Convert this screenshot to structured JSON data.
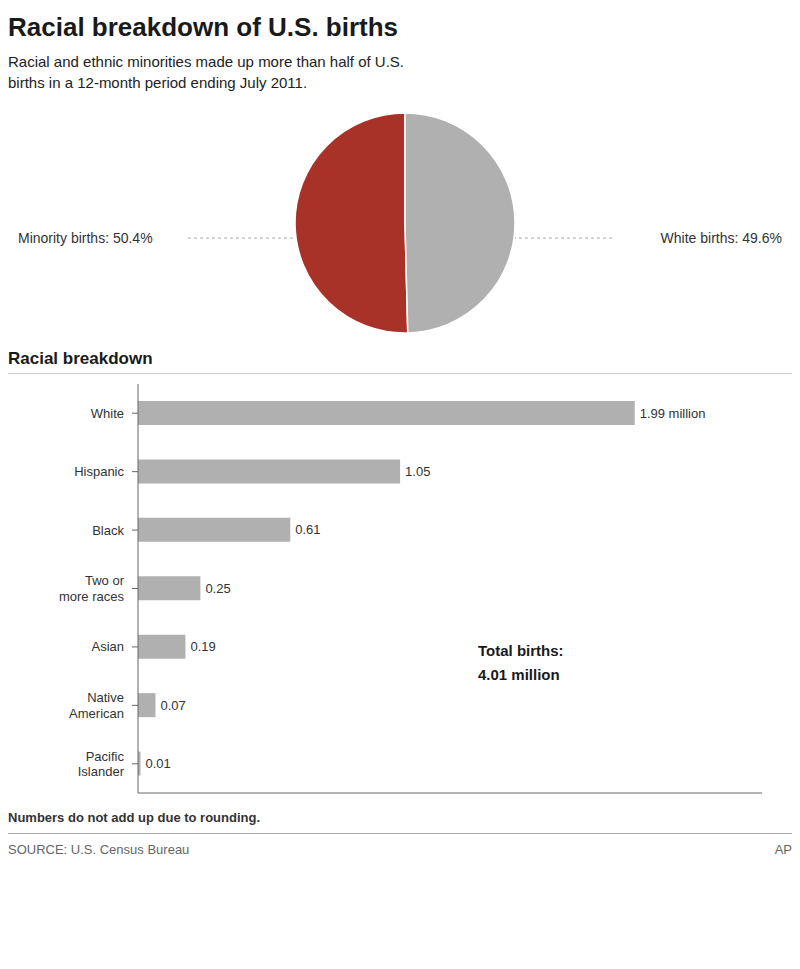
{
  "chart_data": [
    {
      "type": "pie",
      "title": "Racial breakdown of U.S. births",
      "subtitle": "Racial and ethnic minorities made up more than half of U.S.\nbirths in a 12-month period ending July 2011.",
      "values": [
        50.4,
        49.6
      ],
      "colors": [
        "#a83228",
        "#b0b0b0"
      ],
      "value_labels": [
        "Minority births: 50.4%",
        "White births: 49.6%"
      ],
      "data_labels": true
    },
    {
      "type": "bar",
      "orientation": "horizontal",
      "title": "Racial breakdown",
      "categories": [
        "White",
        "Hispanic",
        "Black",
        "Two or\nmore races",
        "Asian",
        "Native\nAmerican",
        "Pacific\nIslander"
      ],
      "values": [
        1.99,
        1.05,
        0.61,
        0.25,
        0.19,
        0.07,
        0.01
      ],
      "value_labels": [
        "1.99 million",
        "1.05",
        "0.61",
        "0.25",
        "0.19",
        "0.07",
        "0.01"
      ],
      "data_labels": true,
      "color": "#b0b0b0",
      "xlim": [
        0,
        2.5
      ],
      "tick_labels": "y",
      "annotations": [
        "Total births:",
        "4.01 million",
        "Numbers do not add up due to rounding.",
        "SOURCE: U.S. Census Bureau",
        "AP"
      ]
    }
  ]
}
